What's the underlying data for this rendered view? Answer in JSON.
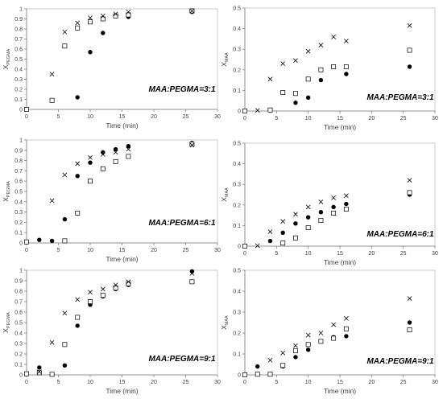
{
  "chart_data": [
    {
      "type": "scatter",
      "ylabel": {
        "main": "X",
        "sub": "PEGMA"
      },
      "xlabel": "Time (min)",
      "annotation": "MAA:PEGMA=3:1",
      "xlim": [
        0,
        30
      ],
      "ylim": [
        0,
        1
      ],
      "xticks": [
        "0",
        "5",
        "10",
        "15",
        "20",
        "25",
        "30"
      ],
      "yticks": [
        "0",
        "0.1",
        "0.2",
        "0.3",
        "0.4",
        "0.5",
        "0.6",
        "0.7",
        "0.8",
        "0.9",
        "1"
      ],
      "series": [
        {
          "marker": "circle",
          "points": [
            [
              0,
              0
            ],
            [
              8,
              0.12
            ],
            [
              10,
              0.57
            ],
            [
              12,
              0.76
            ],
            [
              14,
              0.93
            ],
            [
              16,
              0.92
            ],
            [
              26,
              0.97
            ]
          ]
        },
        {
          "marker": "square",
          "points": [
            [
              0,
              0
            ],
            [
              4,
              0.09
            ],
            [
              6,
              0.63
            ],
            [
              8,
              0.81
            ],
            [
              10,
              0.87
            ],
            [
              12,
              0.9
            ],
            [
              14,
              0.93
            ],
            [
              16,
              0.94
            ],
            [
              26,
              0.98
            ]
          ]
        },
        {
          "marker": "cross",
          "points": [
            [
              4,
              0.35
            ],
            [
              6,
              0.77
            ],
            [
              8,
              0.86
            ],
            [
              10,
              0.91
            ],
            [
              12,
              0.93
            ],
            [
              14,
              0.95
            ],
            [
              16,
              0.97
            ],
            [
              26,
              0.98
            ]
          ]
        }
      ]
    },
    {
      "type": "scatter",
      "ylabel": {
        "main": "X",
        "sub": "MAA"
      },
      "xlabel": "Time (min)",
      "annotation": "MAA:PEGMA=3:1",
      "xlim": [
        0,
        30
      ],
      "ylim": [
        0,
        0.5
      ],
      "xticks": [
        "0",
        "5",
        "10",
        "15",
        "20",
        "25",
        "30"
      ],
      "yticks": [
        "0",
        "0.1",
        "0.2",
        "0.3",
        "0.4",
        "0.5"
      ],
      "series": [
        {
          "marker": "circle",
          "points": [
            [
              0,
              0
            ],
            [
              8,
              0.04
            ],
            [
              10,
              0.065
            ],
            [
              12,
              0.15
            ],
            [
              14,
              0.215
            ],
            [
              16,
              0.18
            ],
            [
              26,
              0.215
            ]
          ]
        },
        {
          "marker": "square",
          "points": [
            [
              0,
              0
            ],
            [
              4,
              0.005
            ],
            [
              6,
              0.09
            ],
            [
              8,
              0.085
            ],
            [
              10,
              0.155
            ],
            [
              12,
              0.2
            ],
            [
              14,
              0.215
            ],
            [
              16,
              0.215
            ],
            [
              26,
              0.295
            ]
          ]
        },
        {
          "marker": "cross",
          "points": [
            [
              2,
              0.003
            ],
            [
              4,
              0.155
            ],
            [
              6,
              0.23
            ],
            [
              8,
              0.245
            ],
            [
              10,
              0.29
            ],
            [
              12,
              0.32
            ],
            [
              14,
              0.36
            ],
            [
              16,
              0.34
            ],
            [
              26,
              0.415
            ]
          ]
        }
      ]
    },
    {
      "type": "scatter",
      "ylabel": {
        "main": "X",
        "sub": "PEGMA"
      },
      "xlabel": "Time (min)",
      "annotation": "MAA:PEGMA=6:1",
      "xlim": [
        0,
        30
      ],
      "ylim": [
        0,
        1
      ],
      "xticks": [
        "0",
        "5",
        "10",
        "15",
        "20",
        "25",
        "30"
      ],
      "yticks": [
        "0",
        "0.1",
        "0.2",
        "0.3",
        "0.4",
        "0.5",
        "0.6",
        "0.7",
        "0.8",
        "0.9",
        "1"
      ],
      "series": [
        {
          "marker": "circle",
          "points": [
            [
              0,
              0.01
            ],
            [
              2,
              0.03
            ],
            [
              4,
              0.02
            ],
            [
              6,
              0.23
            ],
            [
              8,
              0.65
            ],
            [
              10,
              0.78
            ],
            [
              12,
              0.88
            ],
            [
              14,
              0.91
            ],
            [
              16,
              0.94
            ],
            [
              26,
              0.97
            ]
          ]
        },
        {
          "marker": "square",
          "points": [
            [
              0,
              0.01
            ],
            [
              6,
              0.02
            ],
            [
              8,
              0.29
            ],
            [
              10,
              0.6
            ],
            [
              12,
              0.72
            ],
            [
              14,
              0.79
            ],
            [
              16,
              0.84
            ],
            [
              26,
              0.96
            ]
          ]
        },
        {
          "marker": "cross",
          "points": [
            [
              4,
              0.41
            ],
            [
              6,
              0.66
            ],
            [
              8,
              0.77
            ],
            [
              10,
              0.83
            ],
            [
              12,
              0.86
            ],
            [
              14,
              0.88
            ],
            [
              16,
              0.91
            ],
            [
              26,
              0.95
            ]
          ]
        }
      ]
    },
    {
      "type": "scatter",
      "ylabel": {
        "main": "X",
        "sub": "MAA"
      },
      "xlabel": "Time (min)",
      "annotation": "MAA:PEGMA=6:1",
      "xlim": [
        0,
        30
      ],
      "ylim": [
        0,
        0.5
      ],
      "xticks": [
        "0",
        "5",
        "10",
        "15",
        "20",
        "25",
        "30"
      ],
      "yticks": [
        "0",
        "0.1",
        "0.2",
        "0.3",
        "0.4",
        "0.5"
      ],
      "series": [
        {
          "marker": "circle",
          "points": [
            [
              0,
              0
            ],
            [
              4,
              0.025
            ],
            [
              6,
              0.065
            ],
            [
              8,
              0.11
            ],
            [
              10,
              0.14
            ],
            [
              12,
              0.165
            ],
            [
              14,
              0.19
            ],
            [
              16,
              0.205
            ],
            [
              26,
              0.25
            ]
          ]
        },
        {
          "marker": "square",
          "points": [
            [
              0,
              0
            ],
            [
              6,
              0.015
            ],
            [
              8,
              0.04
            ],
            [
              10,
              0.09
            ],
            [
              12,
              0.125
            ],
            [
              14,
              0.16
            ],
            [
              16,
              0.18
            ],
            [
              26,
              0.26
            ]
          ]
        },
        {
          "marker": "cross",
          "points": [
            [
              2,
              0.002
            ],
            [
              4,
              0.07
            ],
            [
              6,
              0.12
            ],
            [
              8,
              0.155
            ],
            [
              10,
              0.19
            ],
            [
              12,
              0.215
            ],
            [
              14,
              0.235
            ],
            [
              16,
              0.245
            ],
            [
              26,
              0.32
            ]
          ]
        }
      ]
    },
    {
      "type": "scatter",
      "ylabel": {
        "main": "X",
        "sub": "PEGMA"
      },
      "xlabel": "Time (min)",
      "annotation": "MAA:PEGMA=9:1",
      "xlim": [
        0,
        30
      ],
      "ylim": [
        0,
        1
      ],
      "xticks": [
        "0",
        "5",
        "10",
        "15",
        "20",
        "25",
        "30"
      ],
      "yticks": [
        "0",
        "0.1",
        "0.2",
        "0.3",
        "0.4",
        "0.5",
        "0.6",
        "0.7",
        "0.8",
        "0.9",
        "1"
      ],
      "series": [
        {
          "marker": "circle",
          "points": [
            [
              0,
              0.01
            ],
            [
              2,
              0.07
            ],
            [
              6,
              0.09
            ],
            [
              8,
              0.47
            ],
            [
              10,
              0.67
            ],
            [
              12,
              0.75
            ],
            [
              14,
              0.82
            ],
            [
              16,
              0.86
            ],
            [
              26,
              0.99
            ]
          ]
        },
        {
          "marker": "square",
          "points": [
            [
              0,
              0.01
            ],
            [
              2,
              0.02
            ],
            [
              4,
              0.005
            ],
            [
              6,
              0.29
            ],
            [
              8,
              0.55
            ],
            [
              10,
              0.7
            ],
            [
              12,
              0.76
            ],
            [
              14,
              0.83
            ],
            [
              16,
              0.87
            ],
            [
              26,
              0.89
            ]
          ]
        },
        {
          "marker": "cross",
          "points": [
            [
              2,
              0.03
            ],
            [
              4,
              0.31
            ],
            [
              6,
              0.59
            ],
            [
              8,
              0.72
            ],
            [
              10,
              0.79
            ],
            [
              12,
              0.82
            ],
            [
              14,
              0.86
            ],
            [
              16,
              0.89
            ],
            [
              26,
              0.97
            ]
          ]
        }
      ]
    },
    {
      "type": "scatter",
      "ylabel": {
        "main": "X",
        "sub": "MAA"
      },
      "xlabel": "Time (min)",
      "annotation": "MAA:PEGMA=9:1",
      "xlim": [
        0,
        30
      ],
      "ylim": [
        0,
        0.5
      ],
      "xticks": [
        "0",
        "5",
        "10",
        "15",
        "20",
        "25",
        "30"
      ],
      "yticks": [
        "0",
        "0.1",
        "0.2",
        "0.3",
        "0.4",
        "0.5"
      ],
      "series": [
        {
          "marker": "circle",
          "points": [
            [
              0,
              0
            ],
            [
              2,
              0.04
            ],
            [
              6,
              0.04
            ],
            [
              8,
              0.085
            ],
            [
              10,
              0.12
            ],
            [
              12,
              0.16
            ],
            [
              14,
              0.18
            ],
            [
              16,
              0.185
            ],
            [
              26,
              0.25
            ]
          ]
        },
        {
          "marker": "square",
          "points": [
            [
              0,
              0
            ],
            [
              2,
              0.003
            ],
            [
              4,
              0.003
            ],
            [
              6,
              0.045
            ],
            [
              8,
              0.115
            ],
            [
              10,
              0.145
            ],
            [
              12,
              0.16
            ],
            [
              14,
              0.175
            ],
            [
              16,
              0.22
            ],
            [
              26,
              0.215
            ]
          ]
        },
        {
          "marker": "cross",
          "points": [
            [
              4,
              0.07
            ],
            [
              6,
              0.105
            ],
            [
              8,
              0.14
            ],
            [
              10,
              0.19
            ],
            [
              12,
              0.2
            ],
            [
              14,
              0.24
            ],
            [
              16,
              0.27
            ],
            [
              26,
              0.365
            ]
          ]
        }
      ]
    }
  ]
}
